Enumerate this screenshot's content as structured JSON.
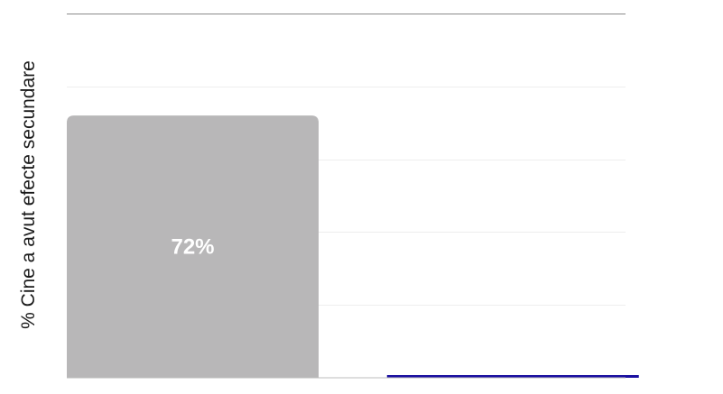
{
  "chart_data": {
    "type": "bar",
    "categories": [
      "",
      ""
    ],
    "values": [
      72,
      0
    ],
    "data_labels": [
      "72%",
      ""
    ],
    "colors": [
      "#b8b7b8",
      "#1a0fa0"
    ],
    "ylabel": "% Cine a avut efecte secundare",
    "ylim": [
      0,
      100
    ],
    "grid": true,
    "legend": "none"
  }
}
